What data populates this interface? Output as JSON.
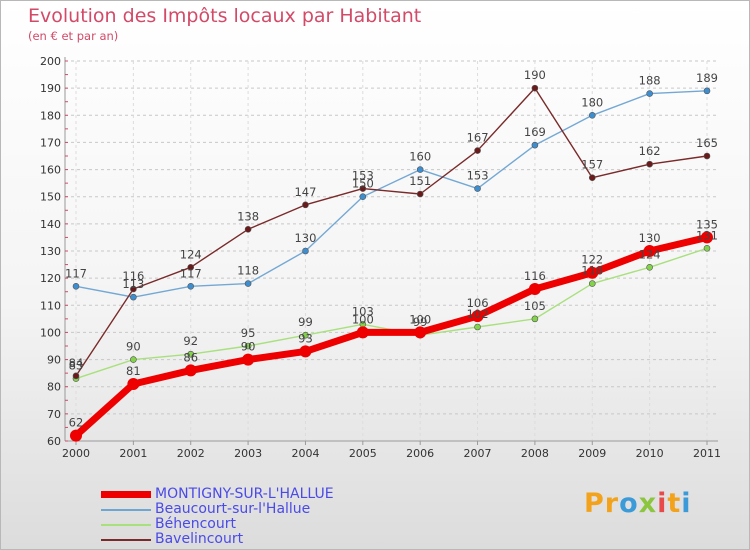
{
  "header": {
    "title": "Evolution des Impôts locaux par Habitant",
    "subtitle": "(en € et par an)"
  },
  "brand": {
    "logo_letters": [
      "P",
      "r",
      "o",
      "x",
      "i",
      "t",
      "i"
    ],
    "logo_colors": [
      "#f2a31b",
      "#f2a31b",
      "#3b9bd9",
      "#8cc63f",
      "#e84a4a",
      "#f2a31b",
      "#3b9bd9"
    ]
  },
  "legend": {
    "items": [
      {
        "label": "MONTIGNY-SUR-L'HALLUE",
        "color": "#ee0000",
        "thick": true
      },
      {
        "label": "Beaucourt-sur-l'Hallue",
        "color": "#6ea6d3",
        "thick": false
      },
      {
        "label": "Béhencourt",
        "color": "#a9e07e",
        "thick": false
      },
      {
        "label": "Bavelincourt",
        "color": "#7a2a2a",
        "thick": false
      }
    ]
  },
  "chart_data": {
    "type": "line",
    "title": "Evolution des Impôts locaux par Habitant",
    "subtitle": "(en € et par an)",
    "x": [
      "2000",
      "2001",
      "2002",
      "2003",
      "2004",
      "2005",
      "2006",
      "2007",
      "2008",
      "2009",
      "2010",
      "2011"
    ],
    "ylim": [
      60,
      200
    ],
    "yticks": [
      60,
      70,
      80,
      90,
      100,
      110,
      120,
      130,
      140,
      150,
      160,
      170,
      180,
      190,
      200
    ],
    "grid": "horizontal dashed",
    "legend_position": "bottom-left",
    "series": [
      {
        "name": "MONTIGNY-SUR-L'HALLUE",
        "color": "#ee0000",
        "marker": "#ee0000",
        "width": 7,
        "values": [
          62,
          81,
          86,
          90,
          93,
          100,
          100,
          106,
          116,
          122,
          130,
          135
        ],
        "labels": [
          "62",
          "81",
          "86",
          "90",
          "93",
          "100",
          "100",
          "106",
          "116",
          "122",
          "130",
          "135"
        ]
      },
      {
        "name": "Beaucourt-sur-l'Hallue",
        "color": "#74a8d4",
        "marker": "#3d8ed0",
        "width": 1.4,
        "values": [
          117,
          113,
          117,
          118,
          130,
          150,
          160,
          153,
          169,
          180,
          188,
          189
        ],
        "labels": [
          "117",
          "113",
          "117",
          "118",
          "130",
          "150",
          "160",
          "153",
          "169",
          "180",
          "188",
          "189"
        ]
      },
      {
        "name": "Béhencourt",
        "color": "#a9e07e",
        "marker": "#82d24a",
        "width": 1.4,
        "values": [
          83,
          90,
          92,
          95,
          99,
          103,
          99,
          102,
          105,
          118,
          124,
          131
        ],
        "labels": [
          "83",
          "90",
          "92",
          "95",
          "99",
          "103",
          "99",
          "102",
          "105",
          "118",
          "124",
          "131"
        ]
      },
      {
        "name": "Bavelincourt",
        "color": "#7a2a2a",
        "marker": "#6a1a1a",
        "width": 1.4,
        "values": [
          84,
          116,
          124,
          138,
          147,
          153,
          151,
          167,
          190,
          157,
          162,
          165
        ],
        "labels": [
          "84",
          "116",
          "124",
          "138",
          "147",
          "153",
          "151",
          "167",
          "190",
          "157",
          "162",
          "165"
        ]
      }
    ]
  }
}
